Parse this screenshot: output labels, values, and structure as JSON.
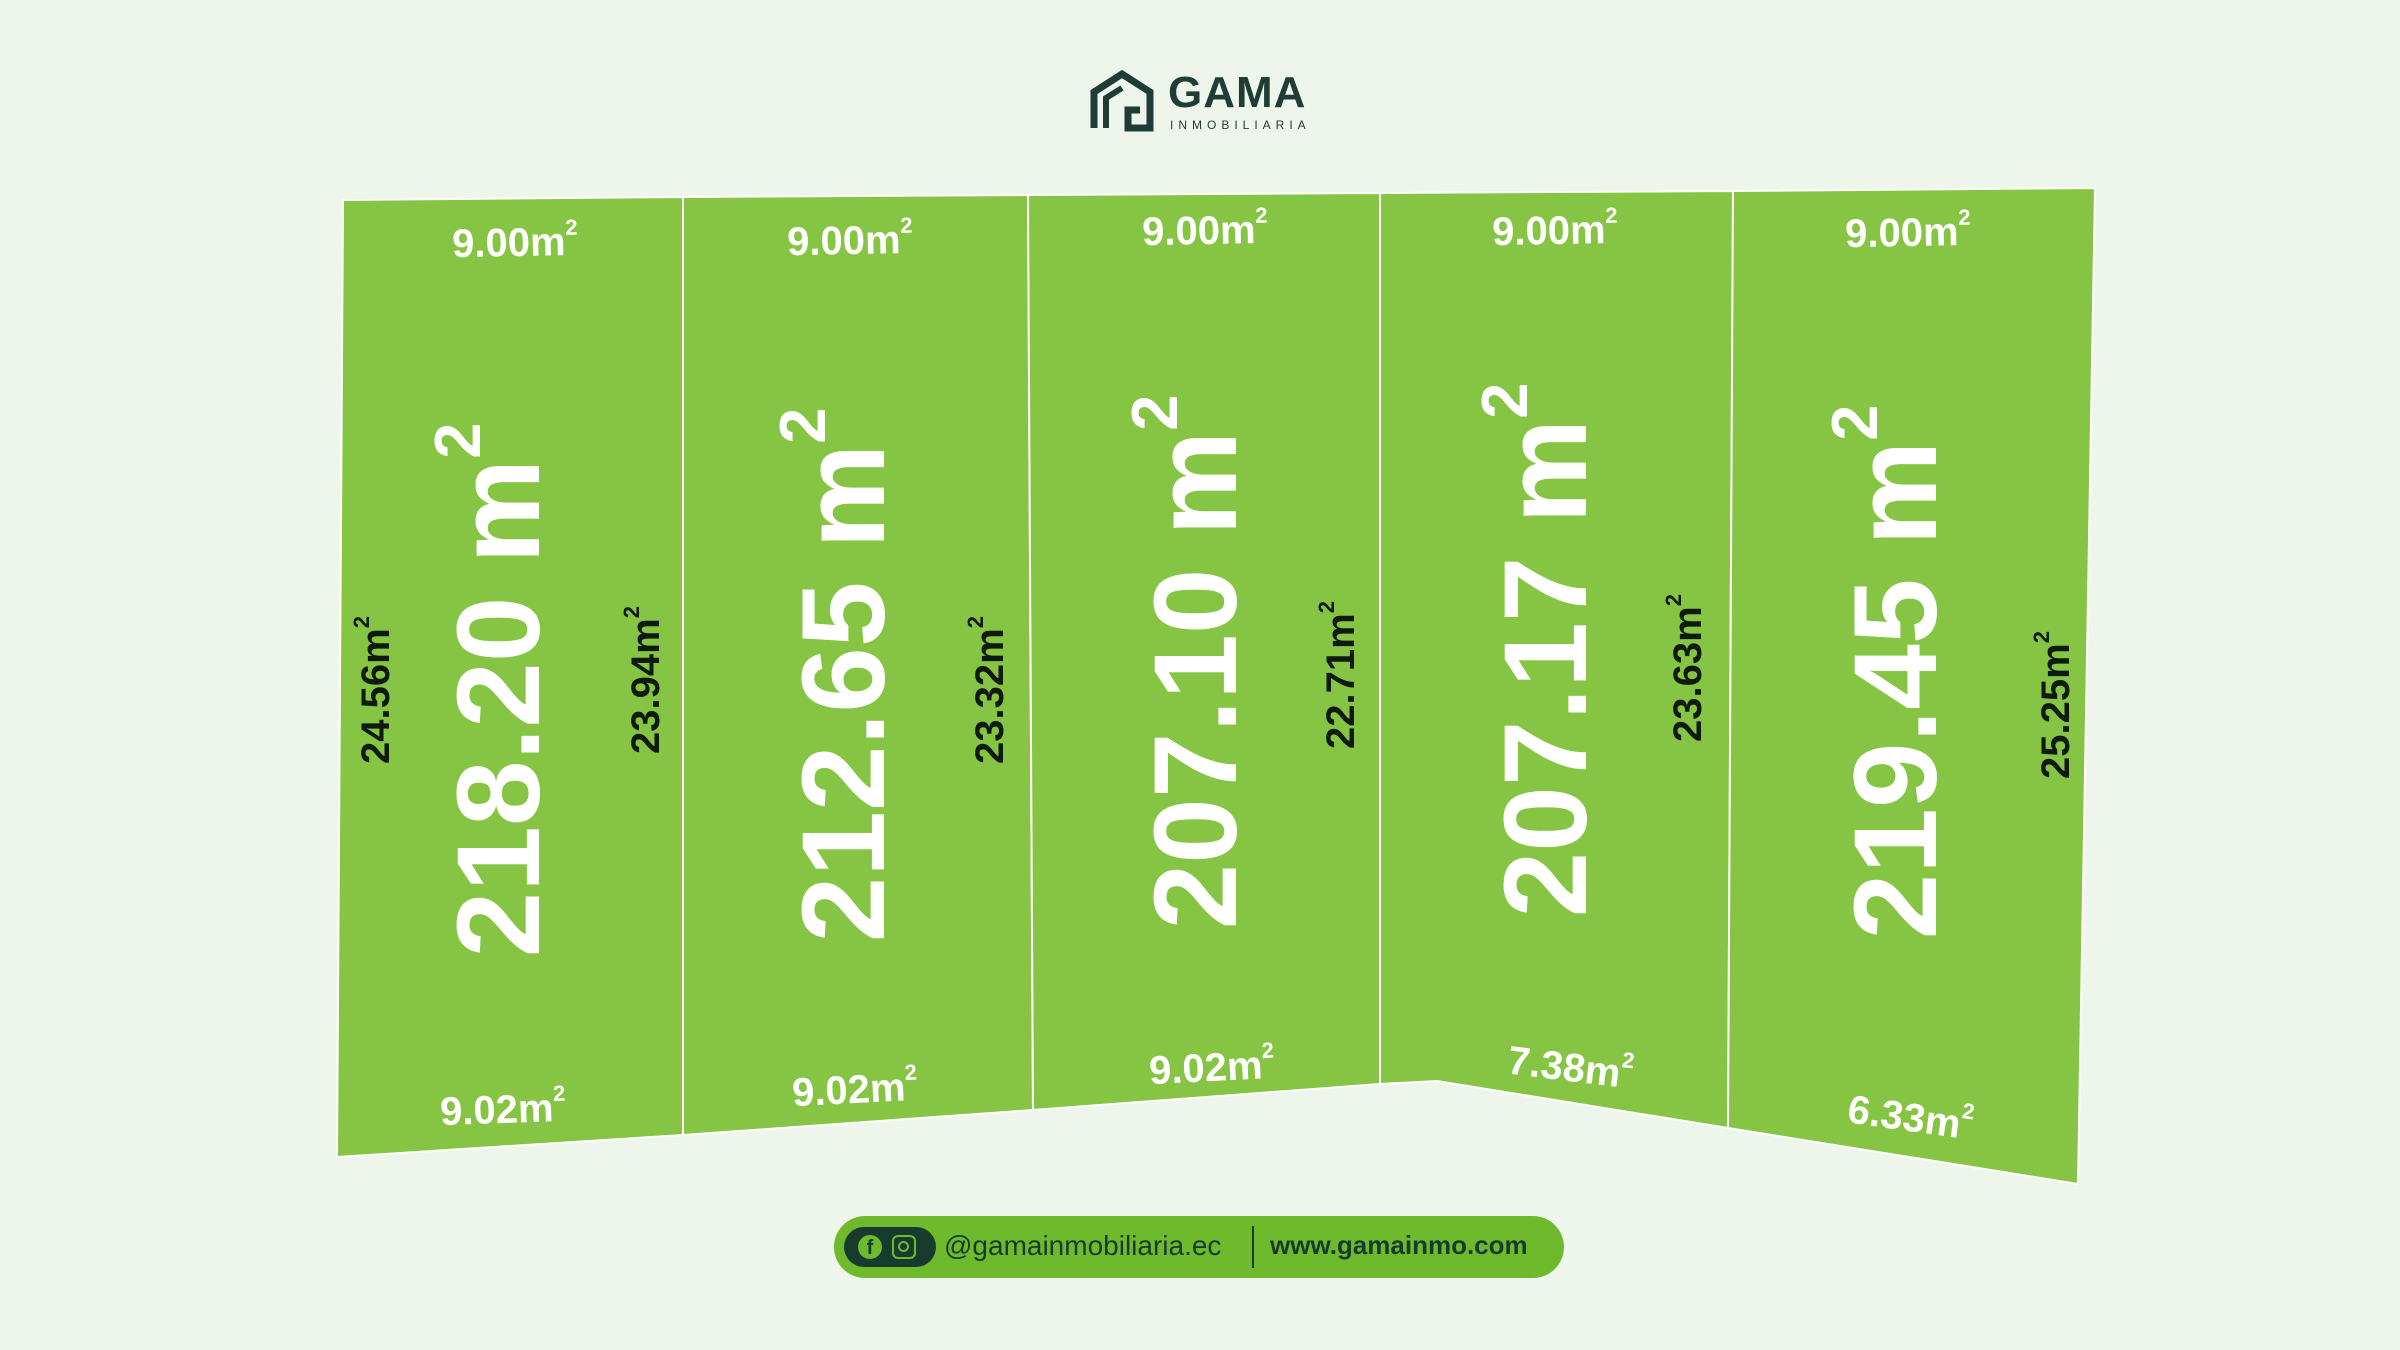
{
  "brand": {
    "name": "GAMA",
    "subtitle": "INMOBILIARIA"
  },
  "colors": {
    "background": "#eef5ea",
    "lot_fill": "#86c543",
    "lot_border": "#ffffff",
    "brand_dark": "#1f3d36",
    "pill": "#6fba2c"
  },
  "lots": [
    {
      "area": "218.20 m2",
      "top": "9.00m2",
      "bottom": "9.02m2",
      "left": "24.56m2",
      "right": "23.94m2"
    },
    {
      "area": "212.65 m2",
      "top": "9.00m2",
      "bottom": "9.02m2",
      "left": "",
      "right": "23.32m2"
    },
    {
      "area": "207.10 m2",
      "top": "9.00m2",
      "bottom": "9.02m2",
      "left": "",
      "right": "22.71m2"
    },
    {
      "area": "207.17 m2",
      "top": "9.00m2",
      "bottom": "7.38m2",
      "left": "",
      "right": "23.63m2"
    },
    {
      "area": "219.45 m2",
      "top": "9.00m2",
      "bottom": "6.33m2",
      "left": "",
      "right": "25.25m2"
    }
  ],
  "footer": {
    "facebook_icon": "facebook-icon",
    "instagram_icon": "instagram-icon",
    "handle": "@gamainmobiliaria.ec",
    "website": "www.gamainmo.com"
  }
}
